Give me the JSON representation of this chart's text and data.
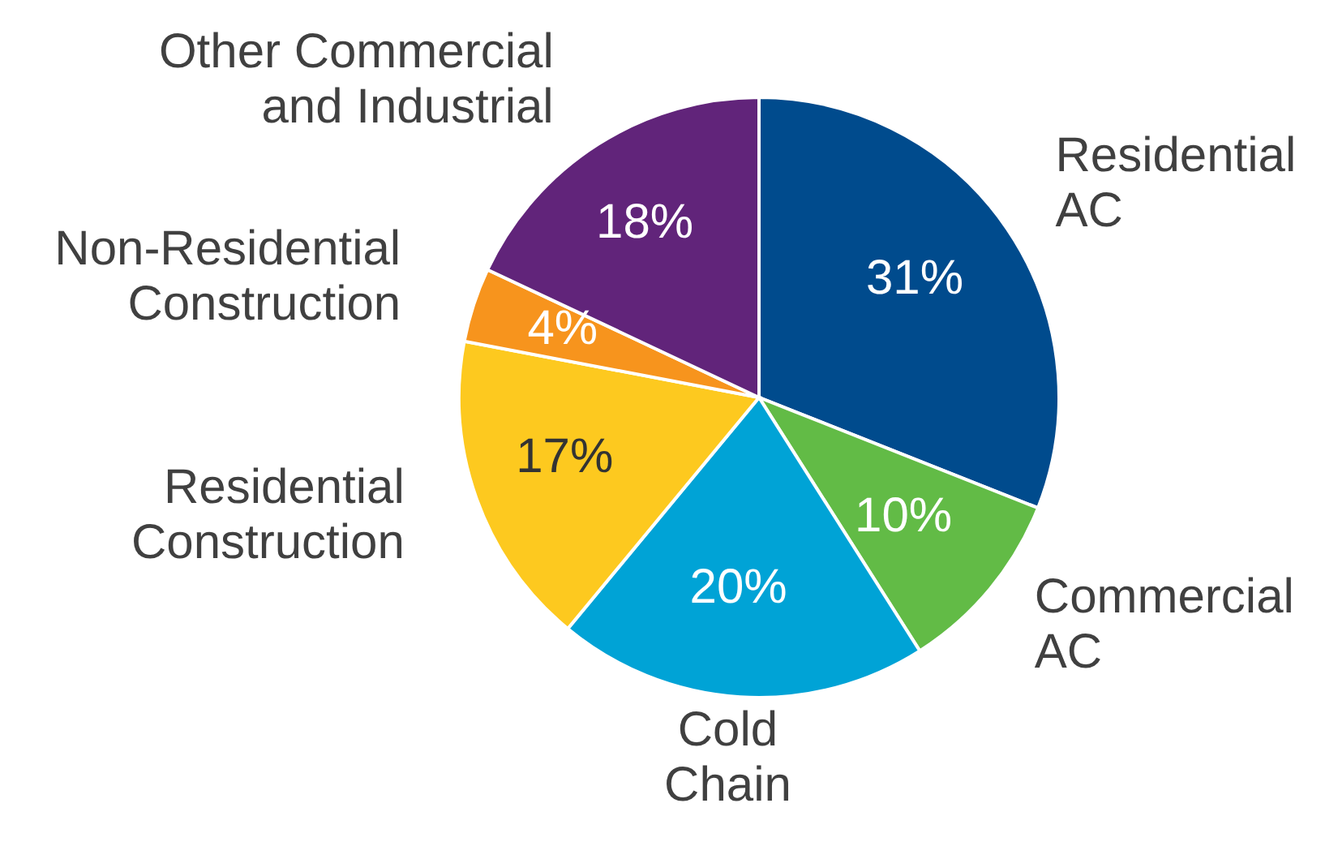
{
  "chart_data": {
    "type": "pie",
    "categories": [
      "Residential AC",
      "Commercial AC",
      "Cold Chain",
      "Residential Construction",
      "Non-Residential Construction",
      "Other Commercial and Industrial"
    ],
    "values": [
      31,
      10,
      20,
      17,
      4,
      18
    ],
    "colors": [
      "#004b8d",
      "#62bb46",
      "#00a3d6",
      "#fdc91f",
      "#f7941d",
      "#61247a"
    ],
    "value_labels": [
      "31%",
      "10%",
      "20%",
      "17%",
      "4%",
      "18%"
    ],
    "legend": false
  }
}
